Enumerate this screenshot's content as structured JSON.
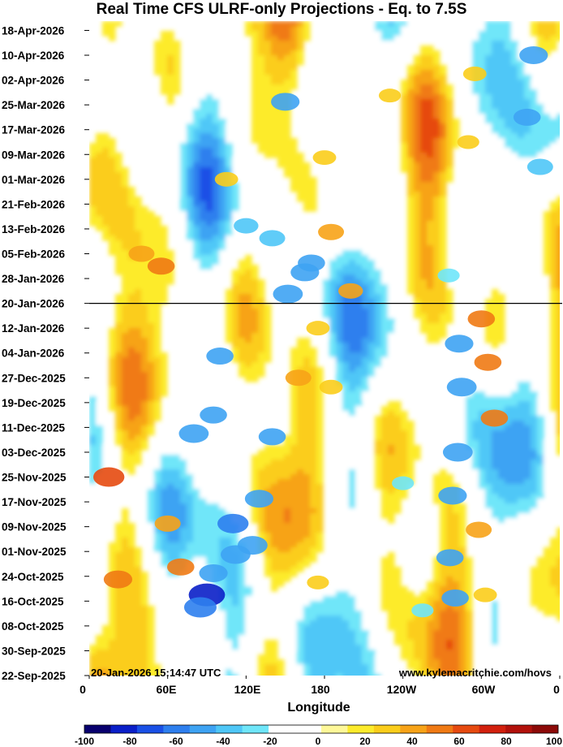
{
  "chart_data": {
    "type": "heatmap",
    "title": "Real Time CFS ULRF-only Projections - Eq. to 7.5S",
    "xlabel": "Longitude",
    "ylabel": "",
    "x_ticks": [
      "0",
      "60E",
      "120E",
      "180",
      "120W",
      "60W",
      "0"
    ],
    "x_range_deg": [
      0,
      360
    ],
    "y_ticks": [
      "22-Sep-2025",
      "30-Sep-2025",
      "08-Oct-2025",
      "16-Oct-2025",
      "24-Oct-2025",
      "01-Nov-2025",
      "09-Nov-2025",
      "17-Nov-2025",
      "25-Nov-2025",
      "03-Dec-2025",
      "11-Dec-2025",
      "19-Dec-2025",
      "27-Dec-2025",
      "04-Jan-2026",
      "12-Jan-2026",
      "20-Jan-2026",
      "28-Jan-2026",
      "05-Feb-2026",
      "13-Feb-2026",
      "21-Feb-2026",
      "01-Mar-2026",
      "09-Mar-2026",
      "17-Mar-2026",
      "25-Mar-2026",
      "02-Apr-2026",
      "10-Apr-2026",
      "18-Apr-2026"
    ],
    "y_range": [
      "22-Sep-2025",
      "21-Apr-2026"
    ],
    "divider_date": "20-Jan-2026",
    "colorbar": {
      "ticks": [
        "-100",
        "-80",
        "-60",
        "-40",
        "-20",
        "0",
        "20",
        "40",
        "60",
        "80",
        "100"
      ],
      "range": [
        -100,
        100
      ],
      "step": 10,
      "colors": [
        "#08006e",
        "#0a1fc8",
        "#1a50e6",
        "#2e7fee",
        "#3ea3f3",
        "#4fc7f7",
        "#6fe6f9",
        "#ffffff",
        "#ffffff",
        "#fff899",
        "#fdeb2c",
        "#fbcd1b",
        "#f7a318",
        "#f07a14",
        "#e64a10",
        "#d2200d",
        "#b2110b",
        "#8c0a08"
      ]
    },
    "features": [
      {
        "lon": 15,
        "date": "25-Nov-2025",
        "value": 60
      },
      {
        "lon": 22,
        "date": "23-Oct-2025",
        "value": 50
      },
      {
        "lon": 40,
        "date": "05-Feb-2026",
        "value": 40
      },
      {
        "lon": 55,
        "date": "01-Feb-2026",
        "value": 45
      },
      {
        "lon": 60,
        "date": "10-Nov-2025",
        "value": 40
      },
      {
        "lon": 70,
        "date": "27-Oct-2025",
        "value": 45
      },
      {
        "lon": 90,
        "date": "18-Oct-2025",
        "value": -80
      },
      {
        "lon": 85,
        "date": "14-Oct-2025",
        "value": -65
      },
      {
        "lon": 95,
        "date": "25-Oct-2025",
        "value": -50
      },
      {
        "lon": 80,
        "date": "09-Dec-2025",
        "value": -55
      },
      {
        "lon": 95,
        "date": "15-Dec-2025",
        "value": -45
      },
      {
        "lon": 100,
        "date": "03-Jan-2026",
        "value": -45
      },
      {
        "lon": 110,
        "date": "10-Nov-2025",
        "value": -60
      },
      {
        "lon": 112,
        "date": "31-Oct-2025",
        "value": -55
      },
      {
        "lon": 125,
        "date": "03-Nov-2025",
        "value": -55
      },
      {
        "lon": 130,
        "date": "18-Nov-2025",
        "value": -50
      },
      {
        "lon": 140,
        "date": "08-Dec-2025",
        "value": -45
      },
      {
        "lon": 152,
        "date": "23-Jan-2026",
        "value": -55
      },
      {
        "lon": 165,
        "date": "30-Jan-2026",
        "value": -50
      },
      {
        "lon": 170,
        "date": "02-Feb-2026",
        "value": -45
      },
      {
        "lon": 150,
        "date": "26-Mar-2026",
        "value": -50
      },
      {
        "lon": 140,
        "date": "10-Feb-2026",
        "value": -40
      },
      {
        "lon": 120,
        "date": "14-Feb-2026",
        "value": -35
      },
      {
        "lon": 185,
        "date": "12-Feb-2026",
        "value": 40
      },
      {
        "lon": 200,
        "date": "24-Jan-2026",
        "value": 35
      },
      {
        "lon": 180,
        "date": "08-Mar-2026",
        "value": 30
      },
      {
        "lon": 175,
        "date": "12-Jan-2026",
        "value": 30
      },
      {
        "lon": 160,
        "date": "27-Dec-2025",
        "value": 40
      },
      {
        "lon": 185,
        "date": "24-Dec-2025",
        "value": 30
      },
      {
        "lon": 105,
        "date": "01-Mar-2026",
        "value": 30
      },
      {
        "lon": 300,
        "date": "15-Jan-2026",
        "value": 45
      },
      {
        "lon": 305,
        "date": "01-Jan-2026",
        "value": 45
      },
      {
        "lon": 310,
        "date": "14-Dec-2025",
        "value": 45
      },
      {
        "lon": 298,
        "date": "08-Nov-2025",
        "value": 40
      },
      {
        "lon": 303,
        "date": "18-Oct-2025",
        "value": 30
      },
      {
        "lon": 285,
        "date": "24-Dec-2025",
        "value": -55
      },
      {
        "lon": 283,
        "date": "07-Jan-2026",
        "value": -50
      },
      {
        "lon": 282,
        "date": "03-Dec-2025",
        "value": -55
      },
      {
        "lon": 278,
        "date": "19-Nov-2025",
        "value": -50
      },
      {
        "lon": 276,
        "date": "30-Oct-2025",
        "value": -45
      },
      {
        "lon": 280,
        "date": "17-Oct-2025",
        "value": -45
      },
      {
        "lon": 275,
        "date": "29-Jan-2026",
        "value": -25
      },
      {
        "lon": 340,
        "date": "10-Apr-2026",
        "value": -50
      },
      {
        "lon": 335,
        "date": "21-Mar-2026",
        "value": -45
      },
      {
        "lon": 345,
        "date": "05-Mar-2026",
        "value": -40
      },
      {
        "lon": 240,
        "date": "23-Nov-2025",
        "value": -25
      },
      {
        "lon": 255,
        "date": "13-Oct-2025",
        "value": -25
      },
      {
        "lon": 230,
        "date": "28-Mar-2026",
        "value": 25
      },
      {
        "lon": 295,
        "date": "04-Apr-2026",
        "value": 30
      },
      {
        "lon": 290,
        "date": "13-Mar-2026",
        "value": 25
      },
      {
        "lon": 175,
        "date": "22-Oct-2025",
        "value": 25
      }
    ]
  },
  "annotations": {
    "timestamp": "20-Jan-2026 15:14:47 UTC",
    "website": "www.kylemacritchie.com/hovs"
  }
}
